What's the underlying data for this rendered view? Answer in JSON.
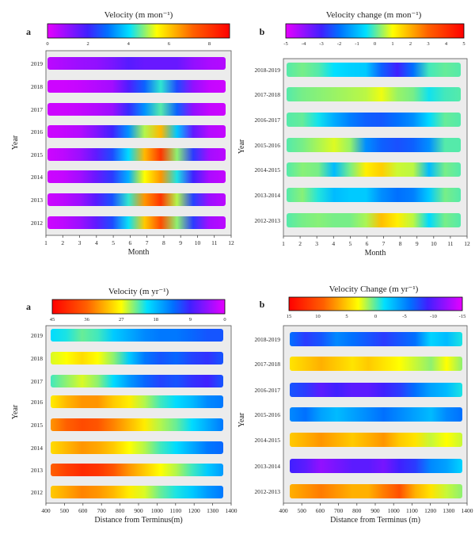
{
  "chart_data": [
    {
      "panel_id": "a",
      "type": "heatmap",
      "title": "Velocity (m mon⁻¹)",
      "xlabel": "Month",
      "ylabel": "Year",
      "x_ticks": [
        "1",
        "2",
        "3",
        "4",
        "5",
        "6",
        "7",
        "8",
        "9",
        "10",
        "11",
        "12"
      ],
      "x_range": [
        1,
        12
      ],
      "rows": [
        "2019",
        "2018",
        "2017",
        "2016",
        "2015",
        "2014",
        "2013",
        "2012"
      ],
      "colorbar": {
        "ticks": [
          "0",
          "2",
          "4",
          "6",
          "8"
        ],
        "range": [
          0,
          9
        ],
        "stops": [
          [
            "0",
            "#e600ff"
          ],
          [
            "0.22",
            "#4020ff"
          ],
          [
            "0.33",
            "#0070ff"
          ],
          [
            "0.45",
            "#00e0ff"
          ],
          [
            "0.6",
            "#ffff00"
          ],
          [
            "0.8",
            "#ff6000"
          ],
          [
            "1",
            "#ff0000"
          ]
        ]
      },
      "values": [
        [
          0.5,
          0.7,
          0.9,
          1.0,
          1.3,
          1.7,
          1.5,
          1.5,
          1.5,
          1.0,
          0.7,
          0.6
        ],
        [
          0.3,
          0.3,
          0.4,
          0.6,
          0.8,
          1.8,
          2.8,
          4.3,
          2.5,
          1.0,
          0.4,
          0.3
        ],
        [
          0.3,
          0.3,
          0.4,
          0.6,
          0.9,
          2.1,
          3.3,
          4.5,
          2.8,
          1.0,
          0.4,
          0.3
        ],
        [
          0.3,
          0.4,
          0.6,
          1.2,
          2.0,
          3.3,
          5.0,
          6.2,
          3.8,
          1.6,
          0.6,
          0.4
        ],
        [
          0.3,
          0.5,
          0.9,
          1.6,
          2.5,
          4.0,
          6.2,
          8.0,
          4.8,
          2.3,
          0.8,
          0.5
        ],
        [
          0.3,
          0.4,
          0.8,
          1.5,
          2.3,
          3.6,
          5.4,
          6.6,
          4.2,
          2.0,
          0.7,
          0.4
        ],
        [
          0.3,
          0.5,
          0.9,
          1.7,
          2.6,
          4.3,
          6.6,
          8.0,
          5.0,
          2.4,
          0.9,
          0.5
        ],
        [
          0.3,
          0.5,
          0.9,
          1.6,
          2.5,
          4.1,
          6.0,
          7.6,
          4.8,
          2.3,
          0.8,
          0.5
        ]
      ]
    },
    {
      "panel_id": "b",
      "type": "heatmap",
      "title": "Velocity change (m mon⁻¹)",
      "xlabel": "Month",
      "ylabel": "Year",
      "x_ticks": [
        "1",
        "2",
        "3",
        "4",
        "5",
        "6",
        "7",
        "8",
        "9",
        "10",
        "11",
        "12"
      ],
      "x_range": [
        1,
        12
      ],
      "rows": [
        "2018-2019",
        "2017-2018",
        "2016-2017",
        "2015-2016",
        "2014-2015",
        "2013-2014",
        "2012-2013"
      ],
      "colorbar": {
        "ticks": [
          "-5",
          "-4",
          "-3",
          "-2",
          "-1",
          "0",
          "1",
          "2",
          "3",
          "4",
          "5"
        ],
        "range": [
          -5,
          5
        ],
        "stops": [
          [
            "0",
            "#e600ff"
          ],
          [
            "0.2",
            "#4020ff"
          ],
          [
            "0.3",
            "#0070ff"
          ],
          [
            "0.45",
            "#00e0ff"
          ],
          [
            "0.6",
            "#ffff00"
          ],
          [
            "0.8",
            "#ff6000"
          ],
          [
            "1",
            "#ff0000"
          ]
        ]
      },
      "values": [
        [
          0.0,
          0.2,
          0.0,
          -0.5,
          -0.7,
          -0.8,
          -2.2,
          -3.0,
          -2.0,
          -0.1,
          0.1,
          0.0
        ],
        [
          0.0,
          0.2,
          0.3,
          0.4,
          0.5,
          0.6,
          0.9,
          0.4,
          0.2,
          -0.4,
          -0.1,
          0.0
        ],
        [
          0.0,
          0.1,
          -0.4,
          -1.2,
          -1.8,
          -2.2,
          -2.3,
          -2.0,
          -1.6,
          -0.6,
          0.1,
          0.0
        ],
        [
          0.0,
          0.2,
          0.5,
          0.8,
          0.4,
          -1.6,
          -2.2,
          -2.4,
          -2.2,
          -1.6,
          0.0,
          0.0
        ],
        [
          0.0,
          0.3,
          0.2,
          -1.0,
          0.2,
          1.2,
          1.6,
          0.7,
          0.6,
          -1.0,
          0.2,
          0.0
        ],
        [
          0.0,
          0.3,
          -0.3,
          -1.0,
          -0.8,
          -0.8,
          -1.6,
          -2.0,
          -1.8,
          -0.8,
          0.2,
          0.0
        ],
        [
          0.0,
          0.2,
          0.3,
          0.2,
          0.2,
          0.5,
          1.8,
          1.2,
          0.6,
          -0.6,
          0.2,
          0.0
        ]
      ]
    },
    {
      "panel_id": "a",
      "type": "heatmap",
      "title": "Velocity (m yr⁻¹)",
      "xlabel": "Distance from Terminus(m)",
      "ylabel": "Year",
      "x_ticks": [
        "400",
        "500",
        "600",
        "700",
        "800",
        "900",
        "1000",
        "1100",
        "1200",
        "1300",
        "1400"
      ],
      "x_range": [
        400,
        1400
      ],
      "rows": [
        "2019",
        "2018",
        "2017",
        "2016",
        "2015",
        "2014",
        "2013",
        "2012"
      ],
      "colorbar": {
        "ticks": [
          "45",
          "36",
          "27",
          "18",
          "9",
          "0"
        ],
        "range": [
          45,
          0
        ],
        "stops": [
          [
            "0",
            "#ff0000"
          ],
          [
            "0.2",
            "#ff6000"
          ],
          [
            "0.4",
            "#ffff00"
          ],
          [
            "0.55",
            "#00e0ff"
          ],
          [
            "0.7",
            "#0070ff"
          ],
          [
            "0.8",
            "#4020ff"
          ],
          [
            "1",
            "#e600ff"
          ]
        ]
      },
      "values": [
        [
          20,
          21,
          23,
          22,
          19,
          17,
          15,
          14,
          14,
          13,
          12,
          12
        ],
        [
          26,
          27,
          29,
          27,
          24,
          19,
          14,
          12,
          13,
          11,
          10,
          12
        ],
        [
          22,
          24,
          26,
          24,
          20,
          16,
          13,
          11,
          12,
          10,
          9,
          12
        ],
        [
          28,
          31,
          33,
          33,
          30,
          28,
          25,
          22,
          20,
          18,
          15,
          14
        ],
        [
          33,
          36,
          38,
          37,
          34,
          31,
          28,
          25,
          23,
          20,
          17,
          14
        ],
        [
          29,
          31,
          33,
          32,
          30,
          27,
          25,
          22,
          20,
          17,
          14,
          13
        ],
        [
          36,
          39,
          41,
          40,
          37,
          33,
          30,
          27,
          25,
          22,
          19,
          16
        ],
        [
          30,
          32,
          34,
          33,
          31,
          28,
          26,
          23,
          21,
          19,
          16,
          14
        ]
      ]
    },
    {
      "panel_id": "b",
      "type": "heatmap",
      "title": "Velocity Change (m yr⁻¹)",
      "xlabel": "Distance from Terminus (m)",
      "ylabel": "Year",
      "x_ticks": [
        "400",
        "500",
        "600",
        "700",
        "800",
        "900",
        "1000",
        "1100",
        "1200",
        "1300",
        "1400"
      ],
      "x_range": [
        400,
        1400
      ],
      "rows": [
        "2018-2019",
        "2017-2018",
        "2016-2017",
        "2015-2016",
        "2014-2015",
        "2013-2014",
        "2012-2013"
      ],
      "colorbar": {
        "ticks": [
          "15",
          "10",
          "5",
          "0",
          "-5",
          "-10",
          "-15"
        ],
        "range": [
          15,
          -15
        ],
        "stops": [
          [
            "0",
            "#ff0000"
          ],
          [
            "0.2",
            "#ff6000"
          ],
          [
            "0.4",
            "#ffff00"
          ],
          [
            "0.55",
            "#00e0ff"
          ],
          [
            "0.7",
            "#0070ff"
          ],
          [
            "0.8",
            "#4020ff"
          ],
          [
            "1",
            "#e600ff"
          ]
        ]
      },
      "values": [
        [
          -6,
          -8,
          -7,
          -5,
          -6,
          -7,
          -8,
          -7,
          -6,
          -2,
          -3,
          -1
        ],
        [
          4,
          5,
          6,
          5,
          4,
          5,
          4,
          3,
          2,
          1,
          3,
          1
        ],
        [
          -7,
          -8,
          -10,
          -9,
          -10,
          -10,
          -9,
          -8,
          -6,
          -4,
          -3,
          -1
        ],
        [
          -5,
          -6,
          -4,
          -3,
          -4,
          -5,
          -6,
          -5,
          -4,
          -3,
          -5,
          -6
        ],
        [
          5,
          6,
          7,
          6,
          5,
          6,
          7,
          5,
          4,
          2,
          3,
          2
        ],
        [
          -9,
          -10,
          -12,
          -11,
          -10,
          -10,
          -11,
          -9,
          -8,
          -5,
          -4,
          -2
        ],
        [
          6,
          7,
          8,
          7,
          6,
          6,
          8,
          10,
          6,
          4,
          2,
          1
        ]
      ]
    }
  ]
}
